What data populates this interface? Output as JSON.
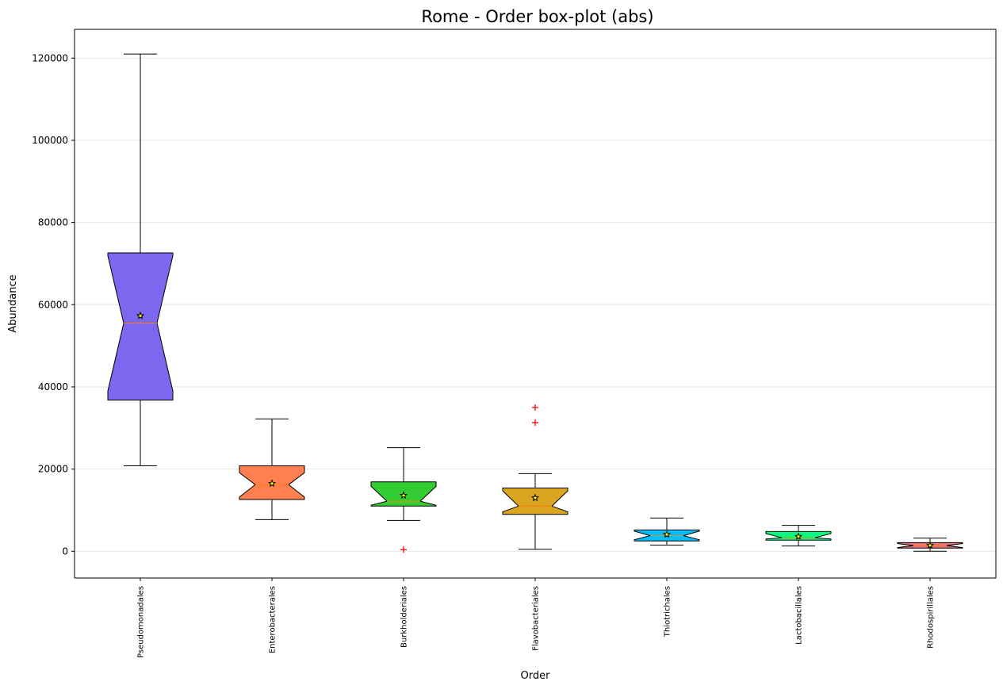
{
  "chart_data": {
    "type": "boxplot",
    "title": "Rome - Order box-plot (abs)",
    "xlabel": "Order",
    "ylabel": "Abundance",
    "ylim": [
      -6500,
      127000
    ],
    "yticks": [
      0,
      20000,
      40000,
      60000,
      80000,
      100000,
      120000
    ],
    "grid": "y",
    "notched": true,
    "mean_marker": "star",
    "outlier_marker": "+",
    "outlier_color": "#ff0000",
    "median_color": "#ff7f0e",
    "categories": [
      "Pseudomonadales",
      "Enterobacterales",
      "Burkholderiales",
      "Flavobacteriales",
      "Thiotrichales",
      "Lactobacillales",
      "Rhodospirillales"
    ],
    "boxes": [
      {
        "whisker_low": 20800,
        "q1": 36800,
        "median": 55500,
        "q3": 72600,
        "whisker_high": 121000,
        "mean": 57300,
        "notch_low": 39000,
        "notch_high": 71900,
        "outliers": [],
        "color": "#7b68ee"
      },
      {
        "whisker_low": 7700,
        "q1": 12600,
        "median": 16200,
        "q3": 20800,
        "whisker_high": 32200,
        "mean": 16500,
        "notch_low": 13200,
        "notch_high": 19100,
        "outliers": [],
        "color": "#ff7f50"
      },
      {
        "whisker_low": 7500,
        "q1": 11000,
        "median": 12200,
        "q3": 16900,
        "whisker_high": 25200,
        "mean": 13600,
        "notch_low": 11200,
        "notch_high": 15800,
        "outliers": [
          400
        ],
        "color": "#32cd32"
      },
      {
        "whisker_low": 500,
        "q1": 9000,
        "median": 11000,
        "q3": 15400,
        "whisker_high": 18900,
        "mean": 13000,
        "notch_low": 9600,
        "notch_high": 14700,
        "outliers": [
          31300,
          35000
        ],
        "color": "#daa520"
      },
      {
        "whisker_low": 1500,
        "q1": 2500,
        "median": 3800,
        "q3": 5200,
        "whisker_high": 8100,
        "mean": 4100,
        "notch_low": 2800,
        "notch_high": 4900,
        "outliers": [],
        "color": "#00bfff"
      },
      {
        "whisker_low": 1300,
        "q1": 2700,
        "median": 3300,
        "q3": 4800,
        "whisker_high": 6300,
        "mean": 3600,
        "notch_low": 3000,
        "notch_high": 4300,
        "outliers": [],
        "color": "#00ff7f"
      },
      {
        "whisker_low": 0,
        "q1": 800,
        "median": 1400,
        "q3": 2100,
        "whisker_high": 3200,
        "mean": 1450,
        "notch_low": 900,
        "notch_high": 1900,
        "outliers": [],
        "color": "#e8707a"
      }
    ]
  }
}
